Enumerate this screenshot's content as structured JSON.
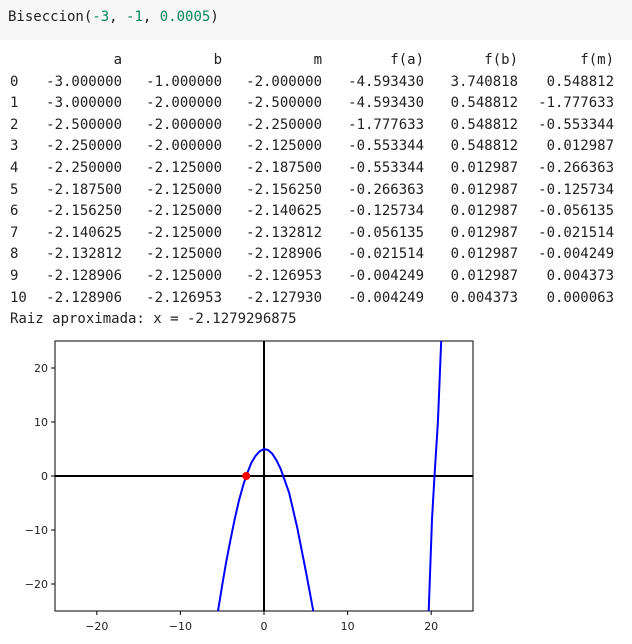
{
  "cell": {
    "func": "Biseccion(",
    "arg1": "-3",
    "sep1": ", ",
    "arg2": "-1",
    "sep2": ", ",
    "arg3": "0.0005",
    "close": ")"
  },
  "table": {
    "columns": [
      "a",
      "b",
      "m",
      "f(a)",
      "f(b)",
      "f(m)"
    ],
    "rows": [
      [
        "0",
        "-3.000000",
        "-1.000000",
        "-2.000000",
        "-4.593430",
        "3.740818",
        "0.548812"
      ],
      [
        "1",
        "-3.000000",
        "-2.000000",
        "-2.500000",
        "-4.593430",
        "0.548812",
        "-1.777633"
      ],
      [
        "2",
        "-2.500000",
        "-2.000000",
        "-2.250000",
        "-1.777633",
        "0.548812",
        "-0.553344"
      ],
      [
        "3",
        "-2.250000",
        "-2.000000",
        "-2.125000",
        "-0.553344",
        "0.548812",
        "0.012987"
      ],
      [
        "4",
        "-2.250000",
        "-2.125000",
        "-2.187500",
        "-0.553344",
        "0.012987",
        "-0.266363"
      ],
      [
        "5",
        "-2.187500",
        "-2.125000",
        "-2.156250",
        "-0.266363",
        "0.012987",
        "-0.125734"
      ],
      [
        "6",
        "-2.156250",
        "-2.125000",
        "-2.140625",
        "-0.125734",
        "0.012987",
        "-0.056135"
      ],
      [
        "7",
        "-2.140625",
        "-2.125000",
        "-2.132812",
        "-0.056135",
        "0.012987",
        "-0.021514"
      ],
      [
        "8",
        "-2.132812",
        "-2.125000",
        "-2.128906",
        "-0.021514",
        "0.012987",
        "-0.004249"
      ],
      [
        "9",
        "-2.128906",
        "-2.125000",
        "-2.126953",
        "-0.004249",
        "0.012987",
        "0.004373"
      ],
      [
        "10",
        "-2.128906",
        "-2.126953",
        "-2.127930",
        "-0.004249",
        "0.004373",
        "0.000063"
      ]
    ]
  },
  "result_text": "Raiz aproximada: x = -2.1279296875",
  "chart_data": {
    "type": "line",
    "title": "",
    "xlabel": "",
    "ylabel": "",
    "xlim": [
      -25,
      25
    ],
    "ylim": [
      -25,
      25
    ],
    "x_ticks": [
      -20,
      -10,
      0,
      10,
      20
    ],
    "y_ticks": [
      -20,
      -10,
      0,
      10,
      20
    ],
    "x_tick_labels": [
      "−20",
      "−10",
      "0",
      "10",
      "20"
    ],
    "y_tick_labels": [
      "−20",
      "−10",
      "0",
      "10",
      "20"
    ],
    "grid": false,
    "series": [
      {
        "color": "#0000ff",
        "points": [
          [
            -5.5,
            -25
          ],
          [
            -5,
            -20.2
          ],
          [
            -4.5,
            -15.7
          ],
          [
            -4,
            -11.7
          ],
          [
            -3.5,
            -8
          ],
          [
            -3,
            -4.59
          ],
          [
            -2.5,
            -1.78
          ],
          [
            -2.128,
            0
          ],
          [
            -2,
            0.55
          ],
          [
            -1.5,
            2.5
          ],
          [
            -1,
            3.74
          ],
          [
            -0.5,
            4.6
          ],
          [
            0,
            5
          ],
          [
            0.5,
            4.8
          ],
          [
            1,
            4.1
          ],
          [
            1.5,
            2.9
          ],
          [
            2,
            1.3
          ],
          [
            3,
            -3.1
          ],
          [
            4,
            -9.7
          ],
          [
            5,
            -17.6
          ],
          [
            5.9,
            -25
          ]
        ]
      },
      {
        "color": "#0000ff",
        "points": [
          [
            19.7,
            -25
          ],
          [
            20.1,
            -8
          ],
          [
            20.4,
            0
          ],
          [
            20.8,
            10
          ],
          [
            21.2,
            25
          ]
        ]
      }
    ],
    "root_marker": {
      "x": -2.1279296875,
      "y": 0,
      "color": "#ff0000"
    },
    "axis_lines_color": "#000000"
  }
}
